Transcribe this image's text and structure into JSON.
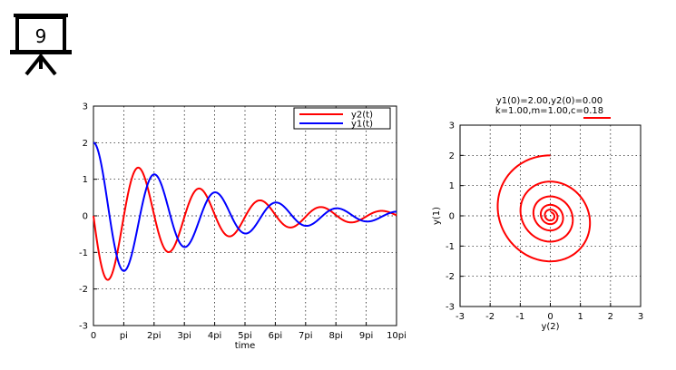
{
  "badge": {
    "number": "9",
    "icon": "presentation-screen-icon"
  },
  "chart_data": [
    {
      "type": "line",
      "xlabel": "time",
      "ylabel": "",
      "xlim": [
        0,
        31.4159
      ],
      "ylim": [
        -3,
        3
      ],
      "x_ticks": [
        {
          "v": 0,
          "label": "0"
        },
        {
          "v": 3.14159,
          "label": "pi"
        },
        {
          "v": 6.28319,
          "label": "2pi"
        },
        {
          "v": 9.42478,
          "label": "3pi"
        },
        {
          "v": 12.5664,
          "label": "4pi"
        },
        {
          "v": 15.708,
          "label": "5pi"
        },
        {
          "v": 18.8496,
          "label": "6pi"
        },
        {
          "v": 21.9911,
          "label": "7pi"
        },
        {
          "v": 25.1327,
          "label": "8pi"
        },
        {
          "v": 28.2743,
          "label": "9pi"
        },
        {
          "v": 31.4159,
          "label": "10pi"
        }
      ],
      "y_ticks": [
        {
          "v": -3,
          "label": "-3"
        },
        {
          "v": -2,
          "label": "-2"
        },
        {
          "v": -1,
          "label": "-1"
        },
        {
          "v": 0,
          "label": "0"
        },
        {
          "v": 1,
          "label": "1"
        },
        {
          "v": 2,
          "label": "2"
        },
        {
          "v": 3,
          "label": "3"
        }
      ],
      "grid": true,
      "legend_position": "top-right",
      "model": {
        "y1_0": 2.0,
        "y2_0": 0.0,
        "k": 1.0,
        "m": 1.0,
        "c": 0.18
      },
      "series": [
        {
          "name": "y2(t)",
          "color": "#ff0000"
        },
        {
          "name": "y1(t)",
          "color": "#0000ff"
        }
      ]
    },
    {
      "type": "line",
      "title_line1": "y1(0)=2.00,y2(0)=0.00",
      "title_line2": "k=1.00,m=1.00,c=0.18",
      "xlabel": "y(2)",
      "ylabel": "y(1)",
      "xlim": [
        -3,
        3
      ],
      "ylim": [
        -3,
        3
      ],
      "x_ticks": [
        {
          "v": -3,
          "label": "-3"
        },
        {
          "v": -2,
          "label": "-2"
        },
        {
          "v": -1,
          "label": "-1"
        },
        {
          "v": 0,
          "label": "0"
        },
        {
          "v": 1,
          "label": "1"
        },
        {
          "v": 2,
          "label": "2"
        },
        {
          "v": 3,
          "label": "3"
        }
      ],
      "y_ticks": [
        {
          "v": -3,
          "label": "-3"
        },
        {
          "v": -2,
          "label": "-2"
        },
        {
          "v": -1,
          "label": "-1"
        },
        {
          "v": 0,
          "label": "0"
        },
        {
          "v": 1,
          "label": "1"
        },
        {
          "v": 2,
          "label": "2"
        },
        {
          "v": 3,
          "label": "3"
        }
      ],
      "grid": true,
      "line_color": "#ff0000",
      "highlight_color": "#ff0000"
    }
  ]
}
